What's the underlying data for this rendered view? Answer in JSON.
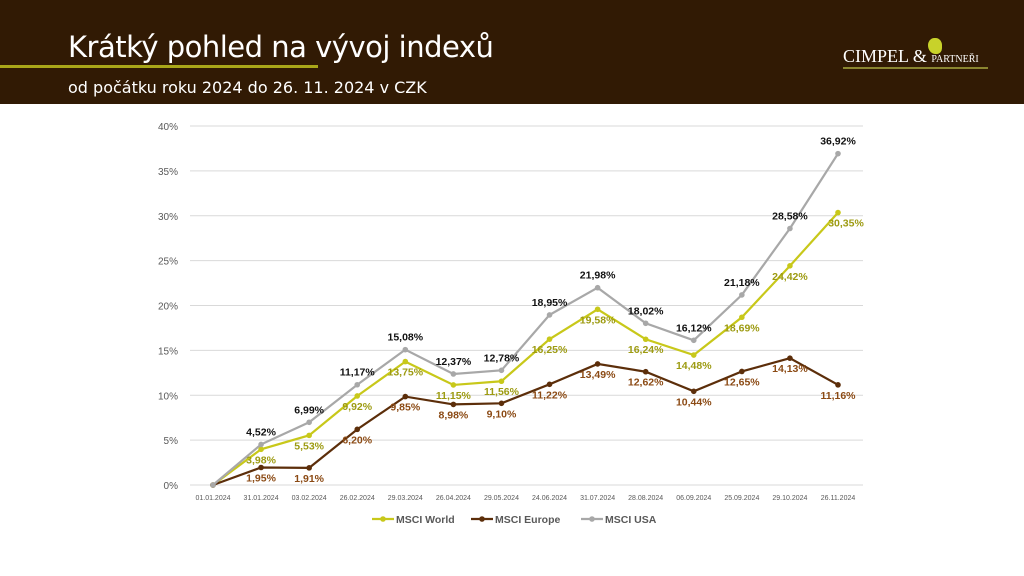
{
  "header": {
    "title": "Krátký pohled na vývoj indexů",
    "subtitle": "od počátku roku 2024 do 26. 11. 2024 v CZK",
    "logo": "CIMPEL & PARTNEŘI",
    "logo_main": "CIMPEL",
    "logo_amp": "&",
    "logo_tail": "PARTNEŘI"
  },
  "chart_data": {
    "type": "line",
    "categories": [
      "01.01.2024",
      "31.01.2024",
      "03.02.2024",
      "26.02.2024",
      "29.03.2024",
      "26.04.2024",
      "29.05.2024",
      "24.06.2024",
      "31.07.2024",
      "28.08.2024",
      "06.09.2024",
      "25.09.2024",
      "29.10.2024",
      "26.11.2024"
    ],
    "ylim": [
      0,
      40
    ],
    "yticks": [
      "0%",
      "5%",
      "10%",
      "15%",
      "20%",
      "25%",
      "30%",
      "35%",
      "40%"
    ],
    "grid": true,
    "legend": "bottom",
    "series": [
      {
        "name": "MSCI World",
        "color": "#c8c81a",
        "label_color": "#9d9b12",
        "values": [
          0,
          3.98,
          5.53,
          9.92,
          13.75,
          11.15,
          11.56,
          16.25,
          19.58,
          16.24,
          14.48,
          18.69,
          24.42,
          30.35
        ],
        "labels": [
          "",
          "3,98%",
          "5,53%",
          "9,92%",
          "13,75%",
          "11,15%",
          "11,56%",
          "16,25%",
          "19,58%",
          "16,24%",
          "14,48%",
          "18,69%",
          "24,42%",
          "30,35%"
        ]
      },
      {
        "name": "MSCI Europe",
        "color": "#5c2e0a",
        "label_color": "#8b4a14",
        "values": [
          0,
          1.95,
          1.91,
          6.2,
          9.85,
          8.98,
          9.1,
          11.22,
          13.49,
          12.62,
          10.44,
          12.65,
          14.13,
          11.16
        ],
        "labels": [
          "",
          "1,95%",
          "1,91%",
          "6,20%",
          "9,85%",
          "8,98%",
          "9,10%",
          "11,22%",
          "13,49%",
          "12,62%",
          "10,44%",
          "12,65%",
          "14,13%",
          "11,16%"
        ]
      },
      {
        "name": "MSCI USA",
        "color": "#a8a8a8",
        "label_color": "#111111",
        "values": [
          0,
          4.52,
          6.99,
          11.17,
          15.08,
          12.37,
          12.78,
          18.95,
          21.98,
          18.02,
          16.12,
          21.18,
          28.58,
          36.92
        ],
        "labels": [
          "",
          "4,52%",
          "6,99%",
          "11,17%",
          "15,08%",
          "12,37%",
          "12,78%",
          "18,95%",
          "21,98%",
          "18,02%",
          "16,12%",
          "21,18%",
          "28,58%",
          "36,92%"
        ]
      }
    ]
  }
}
